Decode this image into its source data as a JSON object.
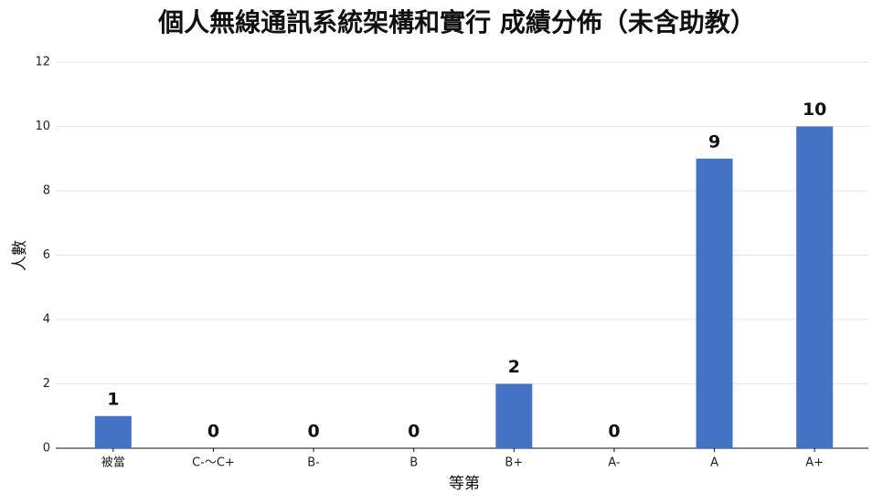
{
  "chart_data": {
    "type": "bar",
    "title": "個人無線通訊系統架構和實行 成績分佈（未含助教）",
    "x_label": "等第",
    "y_label": "人數",
    "categories": [
      "被當",
      "C-～C+",
      "B-",
      "B",
      "B+",
      "A-",
      "A",
      "A+"
    ],
    "values": [
      1,
      0,
      0,
      0,
      2,
      0,
      9,
      10
    ],
    "color": "#4472c4",
    "ylim": [
      0,
      12
    ],
    "yticks": [
      0,
      2,
      4,
      6,
      8,
      10,
      12
    ],
    "grid": true
  }
}
